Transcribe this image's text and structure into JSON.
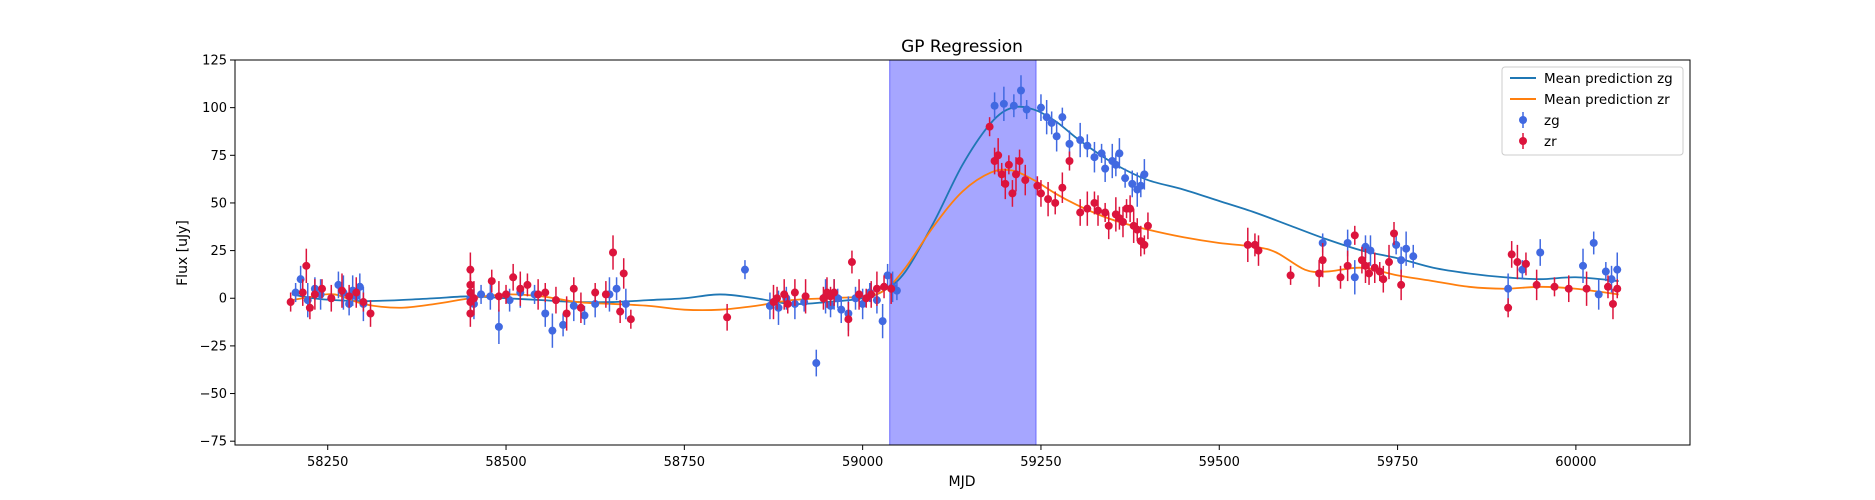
{
  "chart_data": {
    "type": "scatter",
    "title": "GP Regression",
    "xlabel": "MJD",
    "ylabel": "Flux [uJy]",
    "xlim": [
      58120,
      60160
    ],
    "ylim": [
      -77,
      125
    ],
    "xticks": [
      58250,
      58500,
      58750,
      59000,
      59250,
      59500,
      59750,
      60000
    ],
    "yticks": [
      -75,
      -50,
      -25,
      0,
      25,
      50,
      75,
      100,
      125
    ],
    "grid": false,
    "legend_position": "top-right",
    "shaded_region": {
      "x0": 59038,
      "x1": 59243,
      "color": "#a6a6ff"
    },
    "colors": {
      "zg_line": "#1f77b4",
      "zr_line": "#ff7f0e",
      "zg_points": "#4169e1",
      "zr_points": "#dc143c"
    },
    "lines": [
      {
        "name": "Mean prediction zg",
        "color": "#1f77b4",
        "x": [
          58200,
          58230,
          58260,
          58300,
          58350,
          58400,
          58450,
          58500,
          58550,
          58600,
          58650,
          58700,
          58750,
          58800,
          58850,
          58900,
          58950,
          59000,
          59030,
          59060,
          59100,
          59140,
          59180,
          59210,
          59240,
          59270,
          59300,
          59330,
          59360,
          59400,
          59450,
          59500,
          59550,
          59600,
          59650,
          59700,
          59750,
          59800,
          59850,
          59900,
          59950,
          60000,
          60060
        ],
        "y": [
          2,
          0,
          -1,
          -1.5,
          -1,
          0,
          1,
          0,
          -1,
          -2,
          -2,
          -1,
          0,
          2,
          0,
          -3,
          -2,
          0,
          4,
          14,
          40,
          70,
          92,
          100,
          99,
          93,
          84,
          76,
          69,
          62,
          57,
          51,
          45,
          38,
          31,
          25,
          21,
          16,
          13,
          11,
          10,
          11,
          9
        ]
      },
      {
        "name": "Mean prediction zr",
        "color": "#ff7f0e",
        "x": [
          58200,
          58230,
          58260,
          58300,
          58350,
          58400,
          58450,
          58500,
          58550,
          58600,
          58650,
          58700,
          58750,
          58800,
          58850,
          58900,
          58950,
          59000,
          59030,
          59060,
          59100,
          59140,
          59180,
          59210,
          59240,
          59270,
          59300,
          59330,
          59360,
          59400,
          59450,
          59500,
          59550,
          59580,
          59620,
          59650,
          59700,
          59750,
          59800,
          59850,
          59900,
          59950,
          60000,
          60060
        ],
        "y": [
          -1,
          1,
          2,
          -3,
          -5,
          -3,
          0,
          2,
          1,
          -2,
          -3,
          -4,
          -6,
          -6,
          -4,
          -1,
          0,
          1,
          4,
          16,
          38,
          56,
          66,
          67,
          62,
          55,
          49,
          44,
          40,
          36,
          32,
          29,
          27,
          24,
          15,
          14,
          16,
          12,
          9,
          6,
          5,
          6,
          5,
          2
        ]
      }
    ],
    "series": [
      {
        "name": "zg",
        "color": "#4169e1",
        "x": [
          58205,
          58212,
          58222,
          58232,
          58240,
          58255,
          58265,
          58272,
          58280,
          58285,
          58290,
          58295,
          58300,
          58450,
          58455,
          58465,
          58478,
          58490,
          58505,
          58520,
          58540,
          58555,
          58565,
          58580,
          58595,
          58610,
          58625,
          58645,
          58655,
          58668,
          58835,
          58870,
          58882,
          58893,
          58905,
          58918,
          58935,
          58948,
          58955,
          58960,
          58965,
          58970,
          58980,
          58990,
          59000,
          59010,
          59020,
          59028,
          59035,
          59042,
          59048,
          59185,
          59198,
          59212,
          59222,
          59230,
          59250,
          59258,
          59265,
          59272,
          59280,
          59290,
          59305,
          59315,
          59325,
          59335,
          59340,
          59350,
          59355,
          59360,
          59368,
          59378,
          59385,
          59390,
          59395,
          59645,
          59680,
          59690,
          59705,
          59712,
          59748,
          59755,
          59762,
          59772,
          59905,
          59925,
          59950,
          60010,
          60025,
          60032,
          60042,
          60050,
          60058
        ],
        "y": [
          3,
          10,
          -1,
          5,
          2,
          0,
          7,
          3,
          -3,
          4,
          1,
          6,
          -3,
          0,
          -3,
          2,
          1,
          -15,
          -1,
          3,
          2,
          -8,
          -17,
          -14,
          -4,
          -9,
          -3,
          2,
          5,
          -3,
          15,
          -4,
          -5,
          0,
          -3,
          -2,
          -34,
          1,
          -4,
          2,
          0,
          -6,
          -8,
          0,
          -3,
          3,
          -1,
          -12,
          12,
          6,
          4,
          101,
          102,
          101,
          109,
          99,
          100,
          95,
          92,
          85,
          95,
          81,
          83,
          80,
          74,
          76,
          68,
          72,
          70,
          76,
          63,
          60,
          57,
          59,
          65,
          29,
          29,
          11,
          27,
          25,
          28,
          20,
          26,
          22,
          5,
          15,
          24,
          17,
          29,
          2,
          14,
          10,
          15
        ]
      },
      {
        "name": "zr",
        "color": "#dc143c",
        "x": [
          58198,
          58215,
          58220,
          58225,
          58232,
          58242,
          58255,
          58270,
          58280,
          58290,
          58300,
          58310,
          58450,
          58450,
          58450,
          58450,
          58450,
          58455,
          58480,
          58490,
          58500,
          58510,
          58520,
          58530,
          58545,
          58555,
          58570,
          58585,
          58595,
          58605,
          58625,
          58640,
          58650,
          58660,
          58665,
          58675,
          58810,
          58875,
          58880,
          58890,
          58895,
          58905,
          58920,
          58945,
          58950,
          58955,
          58960,
          58980,
          58985,
          58995,
          59005,
          59012,
          59020,
          59030,
          59040,
          59178,
          59185,
          59190,
          59195,
          59200,
          59205,
          59210,
          59215,
          59220,
          59228,
          59245,
          59250,
          59260,
          59270,
          59280,
          59290,
          59305,
          59315,
          59325,
          59330,
          59340,
          59345,
          59355,
          59360,
          59365,
          59370,
          59375,
          59380,
          59385,
          59390,
          59395,
          59400,
          59540,
          59550,
          59555,
          59600,
          59640,
          59645,
          59670,
          59680,
          59690,
          59700,
          59705,
          59710,
          59718,
          59725,
          59730,
          59738,
          59745,
          59755,
          59905,
          59910,
          59918,
          59930,
          59945,
          59970,
          59990,
          60015,
          60045,
          60052,
          60058
        ],
        "y": [
          -2,
          3,
          17,
          -5,
          2,
          5,
          0,
          4,
          1,
          3,
          -2,
          -8,
          15,
          7,
          3,
          -2,
          -8,
          0,
          9,
          1,
          2,
          11,
          5,
          7,
          2,
          3,
          -1,
          -8,
          5,
          -5,
          3,
          2,
          24,
          -7,
          13,
          -11,
          -10,
          -2,
          0,
          2,
          -3,
          3,
          1,
          0,
          3,
          1,
          3,
          -11,
          19,
          2,
          0,
          2,
          5,
          6,
          5,
          90,
          72,
          75,
          65,
          60,
          70,
          55,
          65,
          72,
          62,
          59,
          55,
          52,
          50,
          58,
          72,
          45,
          47,
          50,
          46,
          45,
          38,
          44,
          42,
          40,
          47,
          47,
          38,
          36,
          30,
          28,
          38,
          28,
          28,
          25,
          12,
          13,
          20,
          11,
          17,
          33,
          20,
          17,
          13,
          16,
          14,
          10,
          19,
          34,
          7,
          -5,
          23,
          19,
          18,
          7,
          6,
          5,
          5,
          6,
          -3,
          5
        ]
      }
    ],
    "legend": [
      "Mean prediction zg",
      "Mean prediction zr",
      "zg",
      "zr"
    ]
  }
}
